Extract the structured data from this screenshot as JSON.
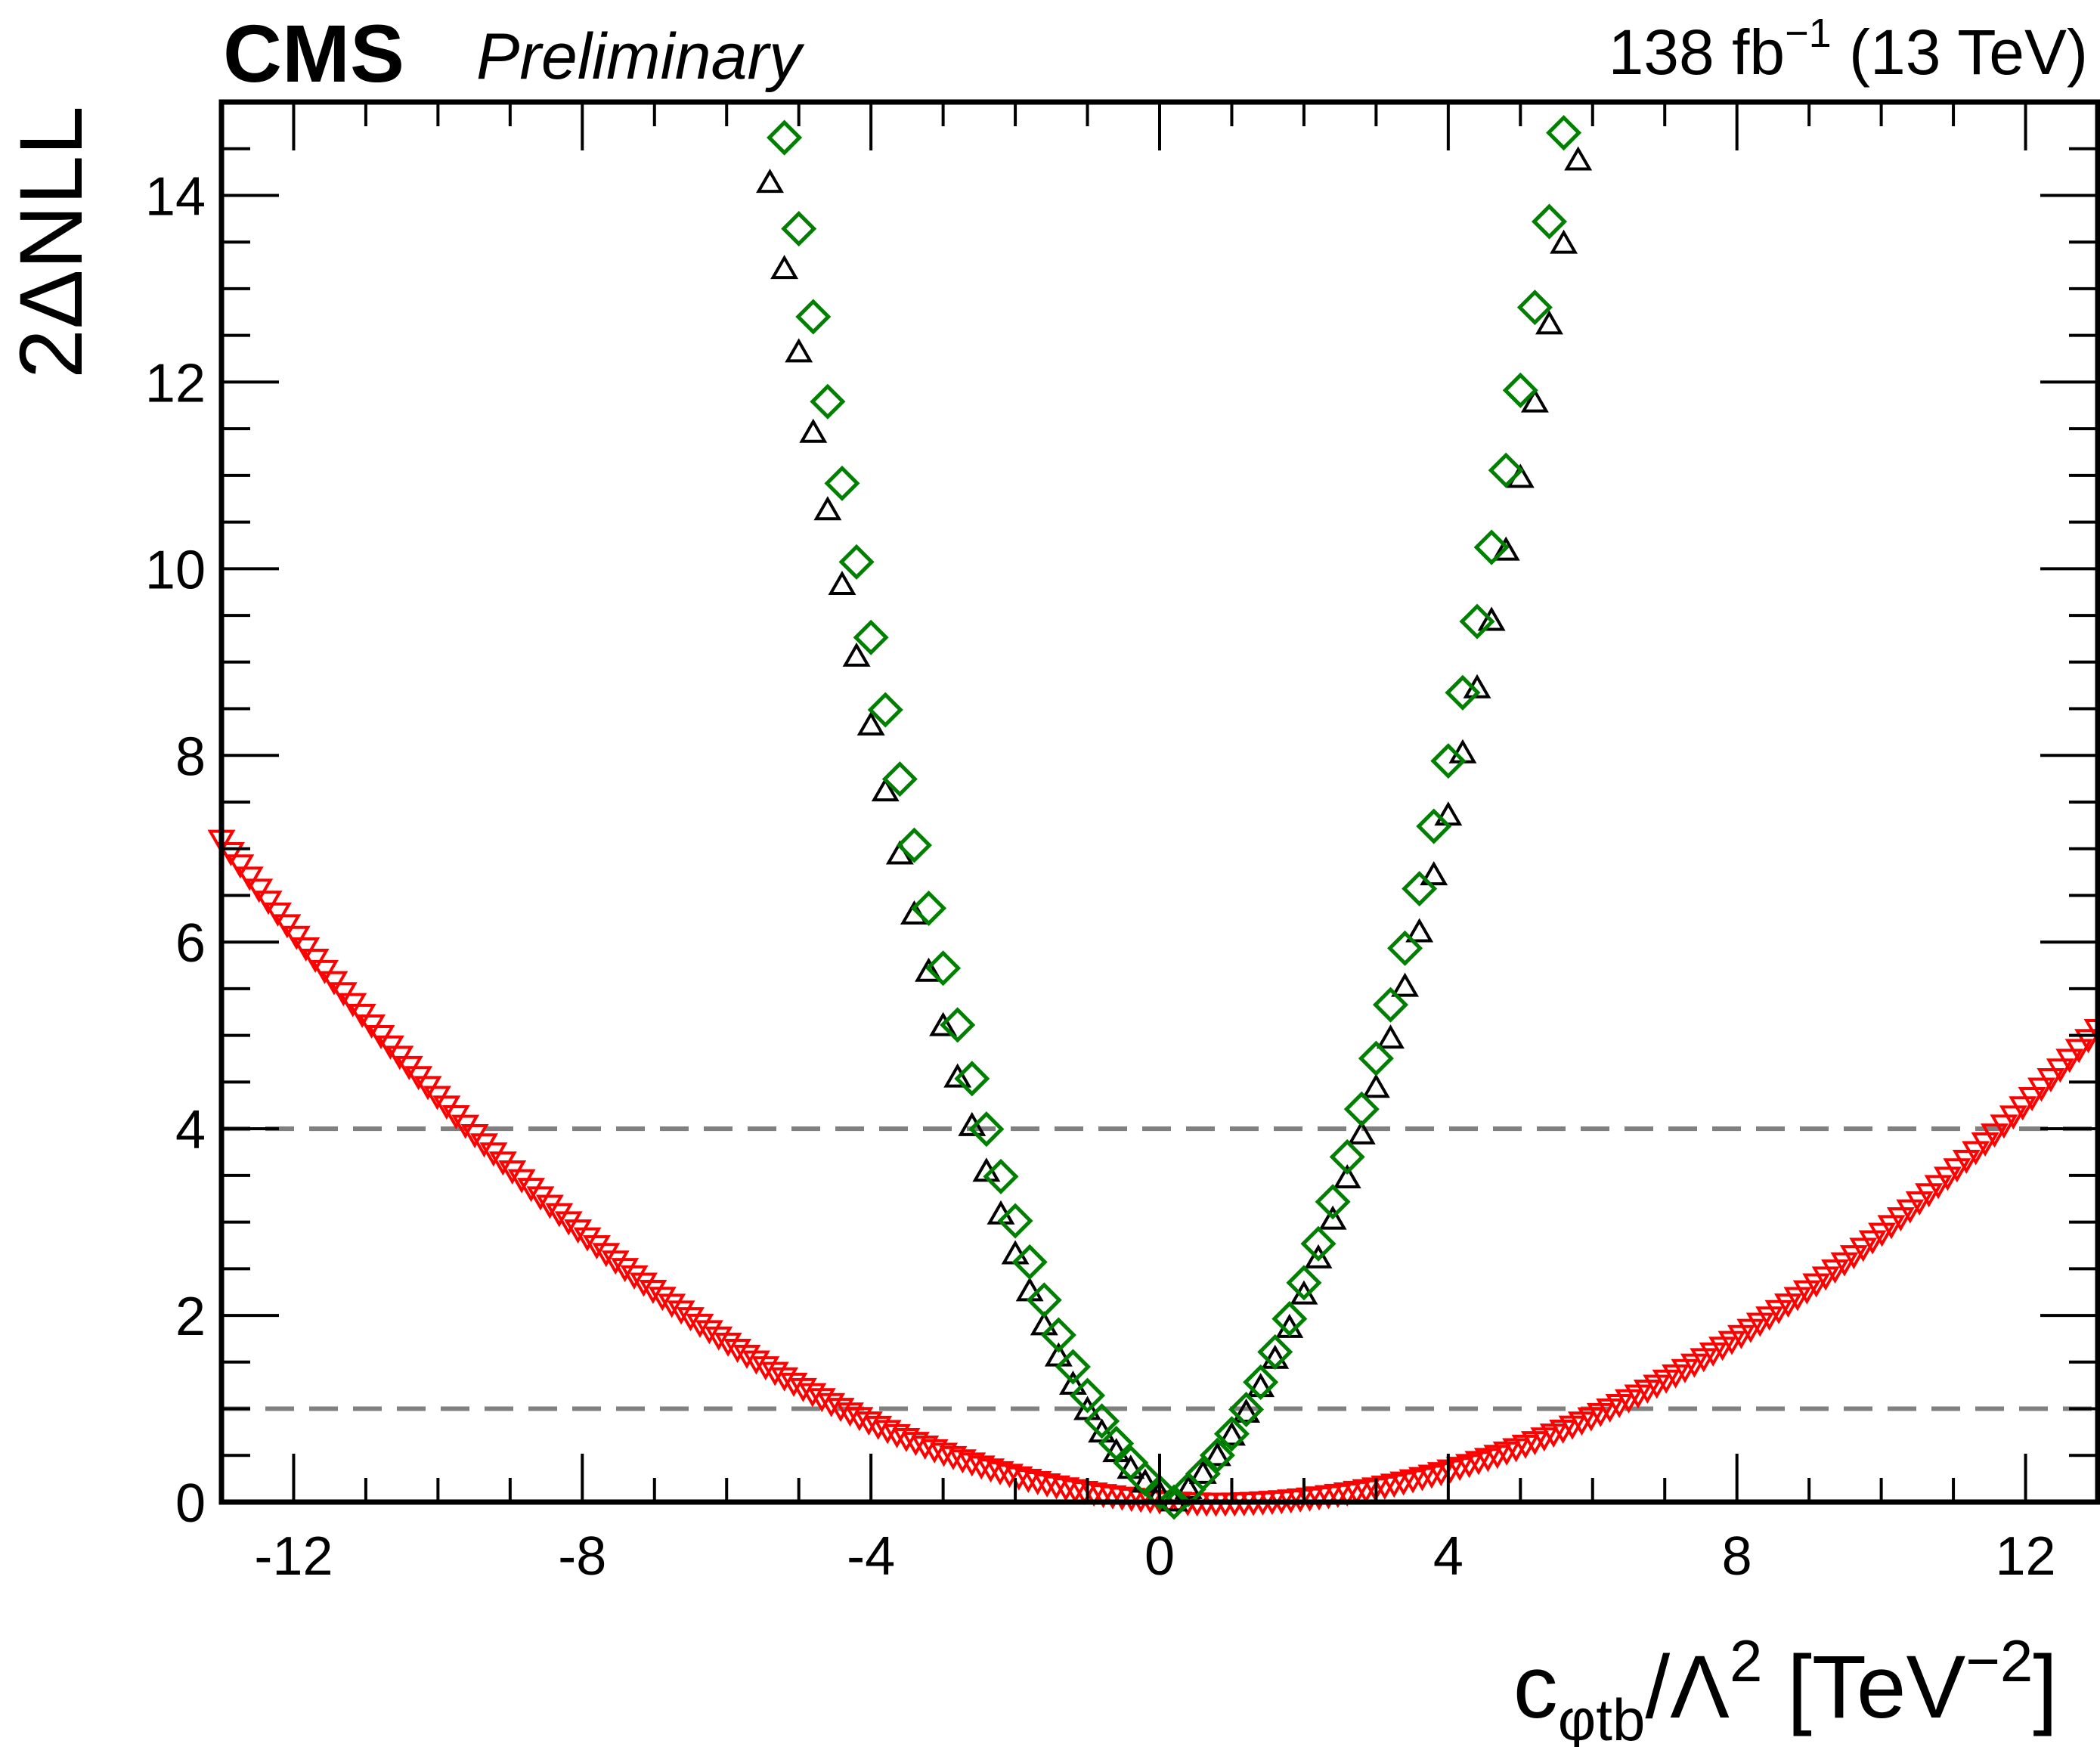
{
  "header": {
    "experiment": "CMS",
    "status": "Preliminary",
    "lumi_value": "138 fb",
    "lumi_exponent": "−1",
    "energy": "(13 TeV)"
  },
  "chart_data": {
    "type": "scatter",
    "title": "",
    "xlabel": "c_{φtb}/Λ^2 [TeV^{-2}]",
    "xlabel_parts": {
      "base": "c",
      "subscript": "φtb",
      "slash": "/Λ",
      "power": "2",
      "unit_open": " [TeV",
      "unit_power": "−2",
      "unit_close": "]"
    },
    "ylabel": "2ΔNLL",
    "xlim": [
      -13,
      13
    ],
    "ylim": [
      0,
      15
    ],
    "x_ticks": [
      -12,
      -8,
      -4,
      0,
      4,
      8,
      12
    ],
    "x_tick_labels": [
      "-12",
      "-8",
      "-4",
      "0",
      "4",
      "8",
      "12"
    ],
    "y_ticks": [
      0,
      2,
      4,
      6,
      8,
      10,
      12,
      14
    ],
    "y_tick_labels": [
      "0",
      "2",
      "4",
      "6",
      "8",
      "10",
      "12",
      "14"
    ],
    "grid": false,
    "reference_lines": [
      {
        "y": 1,
        "style": "dashed",
        "color": "#808080"
      },
      {
        "y": 4,
        "style": "dashed",
        "color": "#808080"
      }
    ],
    "series": [
      {
        "name": "red down-triangles",
        "marker": "triangle-down",
        "color": "#ff0000",
        "x_start": -13.0,
        "x_end": 13.0,
        "x_step": 0.13,
        "curve_min_x": 0.8,
        "left_coeffs": [
          0.0,
          0.0,
          0.0373
        ],
        "right_coeffs": [
          0.0,
          0.0,
          0.0341
        ]
      },
      {
        "name": "black triangles",
        "marker": "triangle-up",
        "color": "#000000",
        "x_start": -5.8,
        "x_end": 5.8,
        "x_step": 0.2,
        "curve_min_x": 0.2,
        "left_coeffs": [
          0.0,
          0.35,
          0.388
        ],
        "right_coeffs": [
          0.0,
          0.6,
          0.351
        ]
      },
      {
        "name": "green diamonds",
        "marker": "diamond",
        "color": "#008000",
        "x_start": -5.4,
        "x_end": 5.6,
        "x_step": 0.2,
        "curve_min_x": 0.2,
        "left_coeffs": [
          0.0,
          0.45,
          0.418
        ],
        "right_coeffs": [
          0.0,
          0.6,
          0.392
        ]
      }
    ]
  }
}
